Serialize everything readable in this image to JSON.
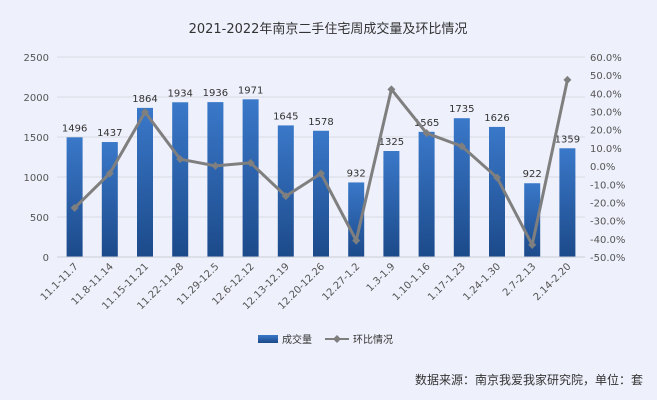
{
  "chart_data": {
    "type": "bar+line",
    "title": "2021-2022年南京二手住宅周成交量及环比情况",
    "categories": [
      "11.1-11.7",
      "11.8-11.14",
      "11.15-11.21",
      "11.22-11.28",
      "11.29-12.5",
      "12.6-12.12",
      "12.13-12.19",
      "12.20-12.26",
      "12.27-1.2",
      "1.3-1.9",
      "1.10-1.16",
      "1.17-1.23",
      "1.24-1.30",
      "2.7-2.13",
      "2.14-2.20"
    ],
    "series": [
      {
        "name": "成交量",
        "type": "bar",
        "axis": "left",
        "values": [
          1496,
          1437,
          1864,
          1934,
          1936,
          1971,
          1645,
          1578,
          932,
          1325,
          1565,
          1735,
          1626,
          922,
          1359
        ]
      },
      {
        "name": "环比情况",
        "type": "line",
        "axis": "right",
        "values": [
          -23.0,
          -4.0,
          29.7,
          3.8,
          0.1,
          1.8,
          -16.5,
          -4.1,
          -40.9,
          42.2,
          18.1,
          10.9,
          -6.3,
          -43.3,
          47.4
        ]
      }
    ],
    "ylim_left": [
      0,
      2500
    ],
    "yticks_left": [
      "0",
      "500",
      "1000",
      "1500",
      "2000",
      "2500"
    ],
    "ylim_right": [
      -50,
      60
    ],
    "yticks_right": [
      "-50.0%",
      "-40.0%",
      "-30.0%",
      "-20.0%",
      "-10.0%",
      "0.0%",
      "10.0%",
      "20.0%",
      "30.0%",
      "40.0%",
      "50.0%",
      "60.0%"
    ],
    "grid": true,
    "legend_position": "bottom-center",
    "colors": {
      "bar_top": "#3a78c9",
      "bar_bottom": "#1c4a8a",
      "line": "#7f7f7f",
      "grid": "#d8dae3"
    }
  },
  "source_note": "数据来源：南京我爱我家研究院，单位：套"
}
